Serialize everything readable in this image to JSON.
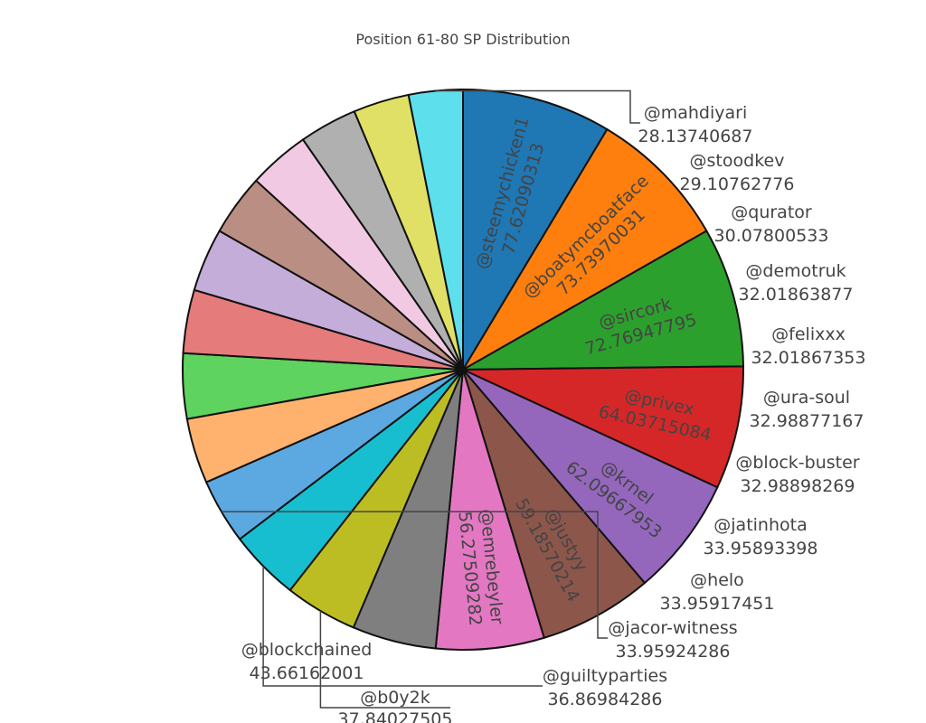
{
  "chart_data": {
    "type": "pie",
    "title": "Position 61-80 SP Distribution",
    "direction": "clockwise",
    "sort": "descending",
    "labels": [
      "@steemychicken1",
      "@boatymcboatface",
      "@sircork",
      "@privex",
      "@krnel",
      "@justyy",
      "@emrebeyler",
      "@blockchained",
      "@b0y2k",
      "@guiltyparties",
      "@jacor-witness",
      "@helo",
      "@jatinhota",
      "@block-buster",
      "@ura-soul",
      "@felixxx",
      "@demotruk",
      "@qurator",
      "@stoodkev",
      "@mahdiyari"
    ],
    "value_labels": [
      "77.62090313",
      "73.73970031",
      "72.76947795",
      "64.03715084",
      "62.09667953",
      "59.18570214",
      "56.27509282",
      "43.66162001",
      "37.84027505",
      "36.86984286",
      "33.95924286",
      "33.95917451",
      "33.95893398",
      "32.98898269",
      "32.98877167",
      "32.01867353",
      "32.01863877",
      "30.07800533",
      "29.10762776",
      "28.13740687"
    ],
    "values": [
      77.62090313,
      73.73970031,
      72.76947795,
      64.03715084,
      62.09667953,
      59.18570214,
      56.27509282,
      43.66162001,
      37.84027505,
      36.86984286,
      33.95924286,
      33.95917451,
      33.95893398,
      32.98898269,
      32.98877167,
      32.01867353,
      32.01863877,
      30.07800533,
      29.10762776,
      28.13740687
    ],
    "colors": [
      "#1f77b4",
      "#ff7f0e",
      "#2ca02c",
      "#d62728",
      "#9467bd",
      "#8c564b",
      "#e377c2",
      "#7f7f7f",
      "#bcbd22",
      "#17becf",
      "#5ca8e0",
      "#ffb26e",
      "#5fd35f",
      "#e57b7b",
      "#c5add9",
      "#bb8e84",
      "#f2c9e3",
      "#b0b0b0",
      "#e0e066",
      "#5ee0ec"
    ]
  }
}
